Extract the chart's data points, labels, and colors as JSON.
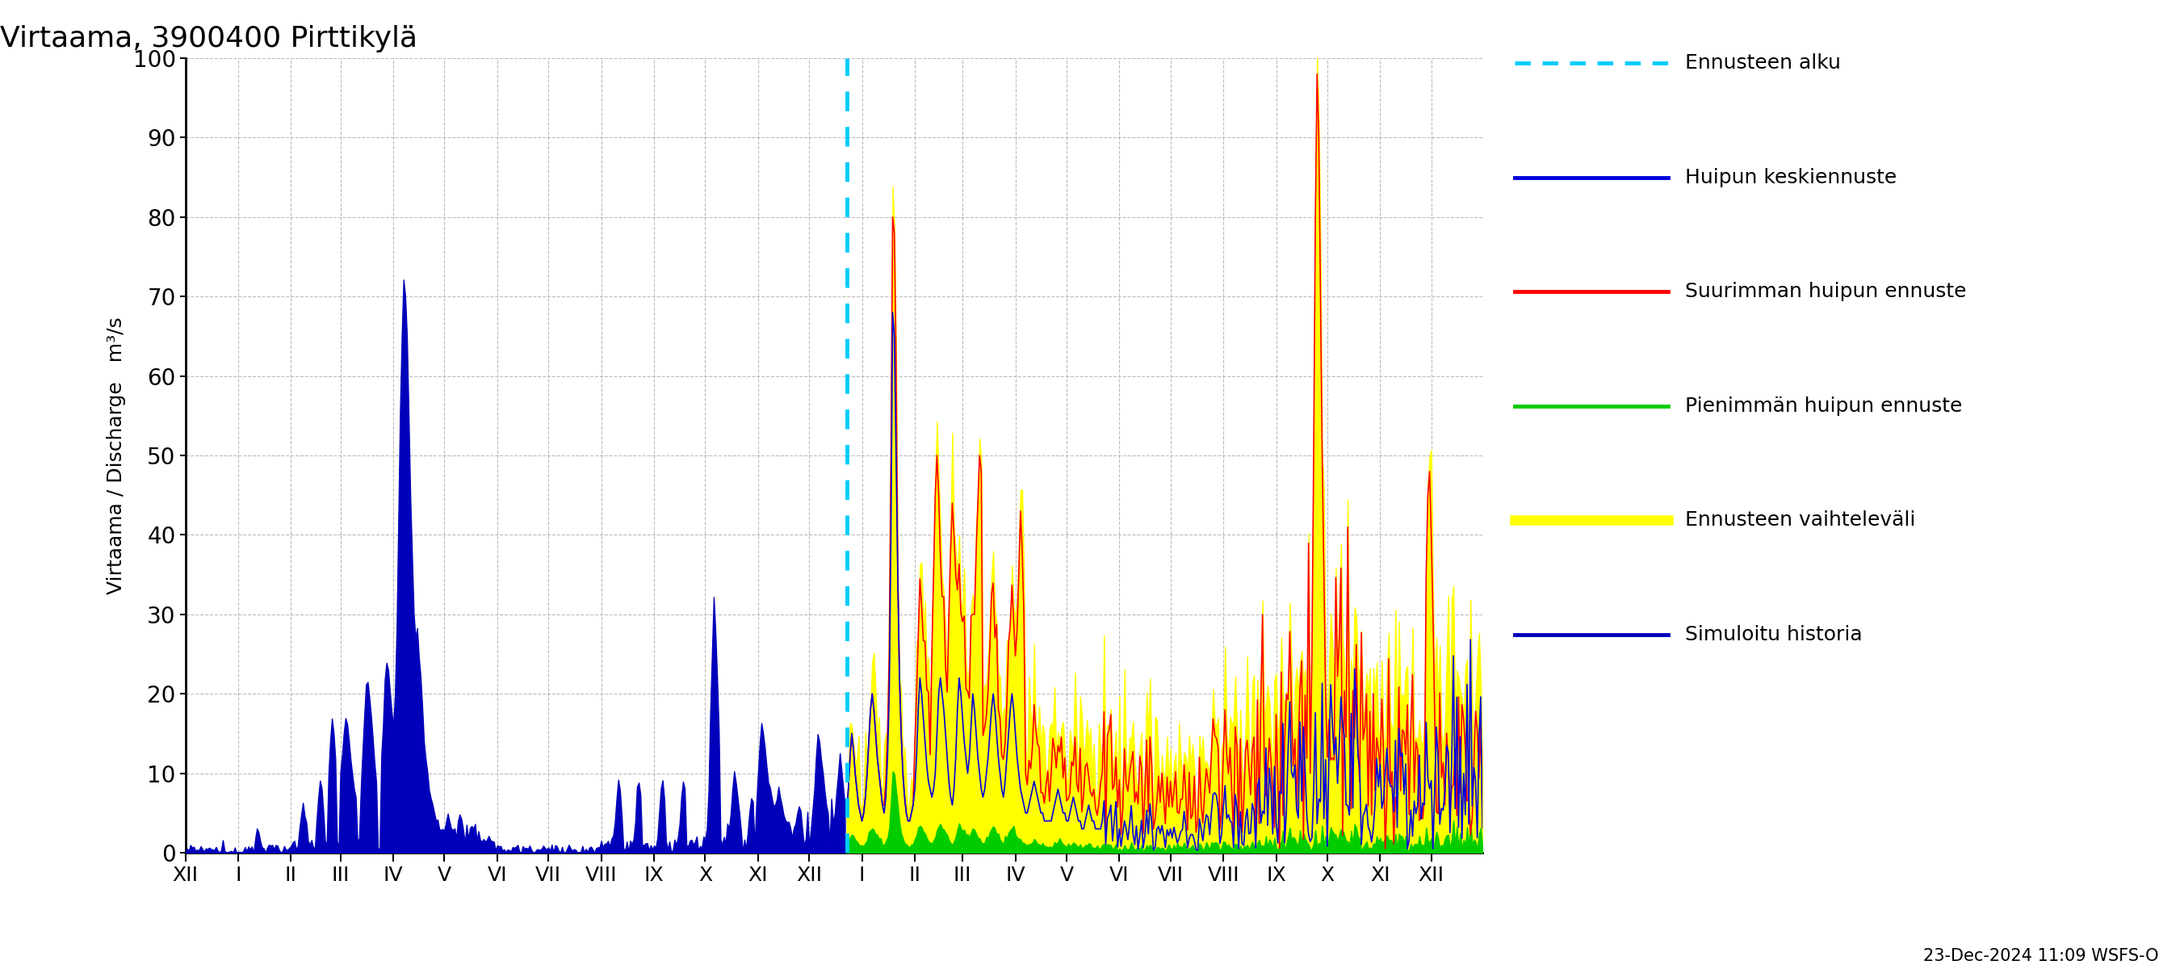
{
  "title": "Virtaama, 3900400 Pirttikylä",
  "ylabel_left": "Virtaama / Discharge   m³/s",
  "ylim": [
    0,
    100
  ],
  "yticks": [
    0,
    10,
    20,
    30,
    40,
    50,
    60,
    70,
    80,
    90,
    100
  ],
  "footnote": "23-Dec-2024 11:09 WSFS-O",
  "colors": {
    "simulated": "#0000bb",
    "mean_forecast": "#0000dd",
    "max_forecast": "#ff0000",
    "min_forecast": "#00cc00",
    "envelope": "#ffff00",
    "forecast_line": "#00ccff"
  },
  "legend_labels": [
    "Ennusteen alku",
    "Huipun keskiennuste",
    "Suurimman huipun ennuste",
    "Pienimmän huipun ennuste",
    "Ennusteen vaihteleväli",
    "Simuloitu historia"
  ],
  "x_tick_labels": [
    "XII",
    "I",
    "II",
    "III",
    "IV",
    "V",
    "VI",
    "VII",
    "VIII",
    "IX",
    "X",
    "XI",
    "XII",
    "I",
    "II",
    "III",
    "IV",
    "V",
    "VI",
    "VII",
    "VIII",
    "IX",
    "X",
    "XI",
    "XII"
  ],
  "background_color": "#ffffff",
  "grid_color": "#aaaaaa"
}
